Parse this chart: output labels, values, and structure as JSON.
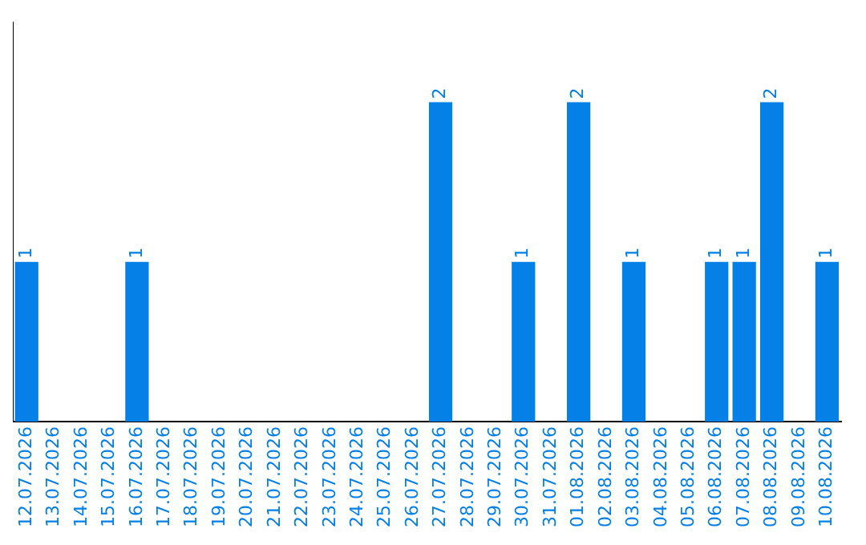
{
  "chart_data": {
    "type": "bar",
    "categories": [
      "12.07.2026",
      "13.07.2026",
      "14.07.2026",
      "15.07.2026",
      "16.07.2026",
      "17.07.2026",
      "18.07.2026",
      "19.07.2026",
      "20.07.2026",
      "21.07.2026",
      "22.07.2026",
      "23.07.2026",
      "24.07.2026",
      "25.07.2026",
      "26.07.2026",
      "27.07.2026",
      "28.07.2026",
      "29.07.2026",
      "30.07.2026",
      "31.07.2026",
      "01.08.2026",
      "02.08.2026",
      "03.08.2026",
      "04.08.2026",
      "05.08.2026",
      "06.08.2026",
      "07.08.2026",
      "08.08.2026",
      "09.08.2026",
      "10.08.2026"
    ],
    "values": [
      1,
      0,
      0,
      0,
      1,
      0,
      0,
      0,
      0,
      0,
      0,
      0,
      0,
      0,
      0,
      2,
      0,
      0,
      1,
      0,
      2,
      0,
      1,
      0,
      0,
      1,
      1,
      2,
      0,
      1
    ],
    "value_labels": [
      "1",
      null,
      null,
      null,
      "1",
      null,
      null,
      null,
      null,
      null,
      null,
      null,
      null,
      null,
      null,
      "2",
      null,
      null,
      "1",
      null,
      "2",
      null,
      "1",
      null,
      null,
      "1",
      "1",
      "2",
      null,
      "1"
    ],
    "color": "#0580e6",
    "grid": false,
    "legend": false,
    "tick_labels": "x"
  }
}
